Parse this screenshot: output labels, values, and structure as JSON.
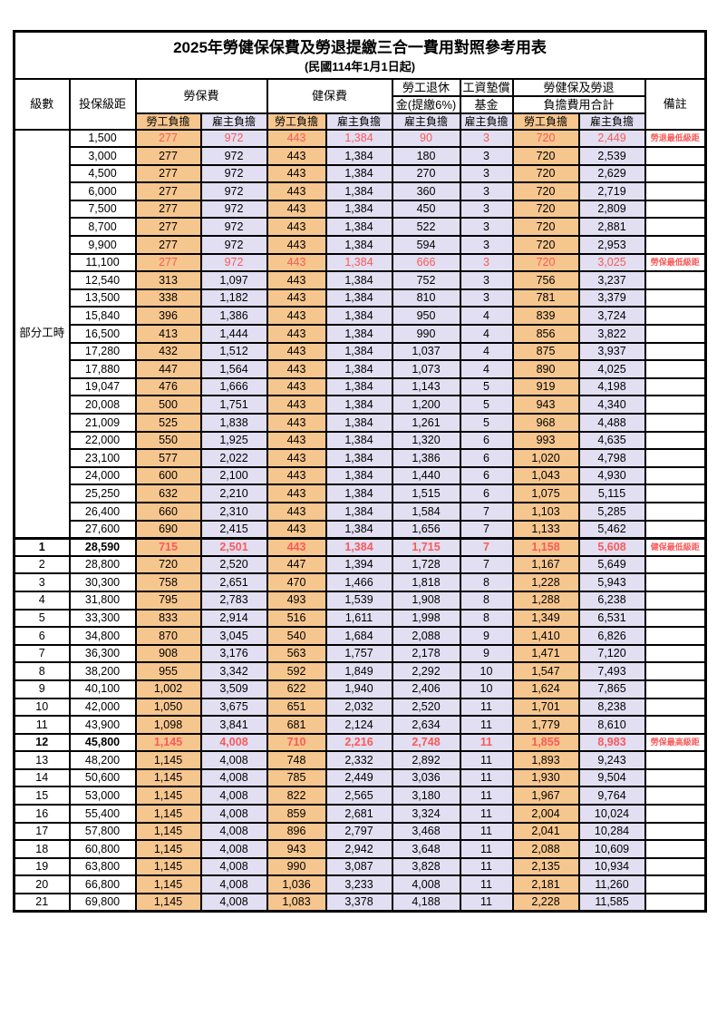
{
  "title": "2025年勞健保保費及勞退提繳三合一費用對照參考用表",
  "subtitle": "(民國114年1月1日起)",
  "colors": {
    "employee_column_bg": "#F6C68F",
    "employer_column_bg": "#E1DFF1",
    "highlight_text": "#FA5A5A",
    "border": "#000000"
  },
  "header": {
    "level": "級數",
    "salary_bracket": "投保級距",
    "labor_insurance": "勞保費",
    "health_insurance": "健保費",
    "pension_line1": "勞工退休",
    "pension_line2": "金(提繳6%)",
    "wage_fund_line1": "工資墊償",
    "wage_fund_line2": "基金",
    "total_line1": "勞健保及勞退",
    "total_line2": "負擔費用合計",
    "note": "備註",
    "employee_burden": "勞工負擔",
    "employer_burden": "雇主負擔"
  },
  "part_time_label": "部分工時",
  "rows": [
    {
      "level": "",
      "salary": "1,500",
      "values": [
        "277",
        "972",
        "443",
        "1,384",
        "90",
        "3",
        "720",
        "2,449"
      ],
      "note": "勞退最低級距",
      "style": "red"
    },
    {
      "level": "",
      "salary": "3,000",
      "values": [
        "277",
        "972",
        "443",
        "1,384",
        "180",
        "3",
        "720",
        "2,539"
      ],
      "note": "",
      "style": ""
    },
    {
      "level": "",
      "salary": "4,500",
      "values": [
        "277",
        "972",
        "443",
        "1,384",
        "270",
        "3",
        "720",
        "2,629"
      ],
      "note": "",
      "style": ""
    },
    {
      "level": "",
      "salary": "6,000",
      "values": [
        "277",
        "972",
        "443",
        "1,384",
        "360",
        "3",
        "720",
        "2,719"
      ],
      "note": "",
      "style": ""
    },
    {
      "level": "",
      "salary": "7,500",
      "values": [
        "277",
        "972",
        "443",
        "1,384",
        "450",
        "3",
        "720",
        "2,809"
      ],
      "note": "",
      "style": ""
    },
    {
      "level": "",
      "salary": "8,700",
      "values": [
        "277",
        "972",
        "443",
        "1,384",
        "522",
        "3",
        "720",
        "2,881"
      ],
      "note": "",
      "style": ""
    },
    {
      "level": "",
      "salary": "9,900",
      "values": [
        "277",
        "972",
        "443",
        "1,384",
        "594",
        "3",
        "720",
        "2,953"
      ],
      "note": "",
      "style": ""
    },
    {
      "level": "",
      "salary": "11,100",
      "values": [
        "277",
        "972",
        "443",
        "1,384",
        "666",
        "3",
        "720",
        "3,025"
      ],
      "note": "勞保最低級距",
      "style": "red"
    },
    {
      "level": "",
      "salary": "12,540",
      "values": [
        "313",
        "1,097",
        "443",
        "1,384",
        "752",
        "3",
        "756",
        "3,237"
      ],
      "note": "",
      "style": ""
    },
    {
      "level": "",
      "salary": "13,500",
      "values": [
        "338",
        "1,182",
        "443",
        "1,384",
        "810",
        "3",
        "781",
        "3,379"
      ],
      "note": "",
      "style": ""
    },
    {
      "level": "",
      "salary": "15,840",
      "values": [
        "396",
        "1,386",
        "443",
        "1,384",
        "950",
        "4",
        "839",
        "3,724"
      ],
      "note": "",
      "style": ""
    },
    {
      "level": "",
      "salary": "16,500",
      "values": [
        "413",
        "1,444",
        "443",
        "1,384",
        "990",
        "4",
        "856",
        "3,822"
      ],
      "note": "",
      "style": ""
    },
    {
      "level": "",
      "salary": "17,280",
      "values": [
        "432",
        "1,512",
        "443",
        "1,384",
        "1,037",
        "4",
        "875",
        "3,937"
      ],
      "note": "",
      "style": ""
    },
    {
      "level": "",
      "salary": "17,880",
      "values": [
        "447",
        "1,564",
        "443",
        "1,384",
        "1,073",
        "4",
        "890",
        "4,025"
      ],
      "note": "",
      "style": ""
    },
    {
      "level": "",
      "salary": "19,047",
      "values": [
        "476",
        "1,666",
        "443",
        "1,384",
        "1,143",
        "5",
        "919",
        "4,198"
      ],
      "note": "",
      "style": ""
    },
    {
      "level": "",
      "salary": "20,008",
      "values": [
        "500",
        "1,751",
        "443",
        "1,384",
        "1,200",
        "5",
        "943",
        "4,340"
      ],
      "note": "",
      "style": ""
    },
    {
      "level": "",
      "salary": "21,009",
      "values": [
        "525",
        "1,838",
        "443",
        "1,384",
        "1,261",
        "5",
        "968",
        "4,488"
      ],
      "note": "",
      "style": ""
    },
    {
      "level": "",
      "salary": "22,000",
      "values": [
        "550",
        "1,925",
        "443",
        "1,384",
        "1,320",
        "6",
        "993",
        "4,635"
      ],
      "note": "",
      "style": ""
    },
    {
      "level": "",
      "salary": "23,100",
      "values": [
        "577",
        "2,022",
        "443",
        "1,384",
        "1,386",
        "6",
        "1,020",
        "4,798"
      ],
      "note": "",
      "style": ""
    },
    {
      "level": "",
      "salary": "24,000",
      "values": [
        "600",
        "2,100",
        "443",
        "1,384",
        "1,440",
        "6",
        "1,043",
        "4,930"
      ],
      "note": "",
      "style": ""
    },
    {
      "level": "",
      "salary": "25,250",
      "values": [
        "632",
        "2,210",
        "443",
        "1,384",
        "1,515",
        "6",
        "1,075",
        "5,115"
      ],
      "note": "",
      "style": ""
    },
    {
      "level": "",
      "salary": "26,400",
      "values": [
        "660",
        "2,310",
        "443",
        "1,384",
        "1,584",
        "7",
        "1,103",
        "5,285"
      ],
      "note": "",
      "style": ""
    },
    {
      "level": "",
      "salary": "27,600",
      "values": [
        "690",
        "2,415",
        "443",
        "1,384",
        "1,656",
        "7",
        "1,133",
        "5,462"
      ],
      "note": "",
      "style": ""
    },
    {
      "level": "1",
      "salary": "28,590",
      "values": [
        "715",
        "2,501",
        "443",
        "1,384",
        "1,715",
        "7",
        "1,158",
        "5,608"
      ],
      "note": "健保最低級距",
      "style": "red-bold"
    },
    {
      "level": "2",
      "salary": "28,800",
      "values": [
        "720",
        "2,520",
        "447",
        "1,394",
        "1,728",
        "7",
        "1,167",
        "5,649"
      ],
      "note": "",
      "style": ""
    },
    {
      "level": "3",
      "salary": "30,300",
      "values": [
        "758",
        "2,651",
        "470",
        "1,466",
        "1,818",
        "8",
        "1,228",
        "5,943"
      ],
      "note": "",
      "style": ""
    },
    {
      "level": "4",
      "salary": "31,800",
      "values": [
        "795",
        "2,783",
        "493",
        "1,539",
        "1,908",
        "8",
        "1,288",
        "6,238"
      ],
      "note": "",
      "style": ""
    },
    {
      "level": "5",
      "salary": "33,300",
      "values": [
        "833",
        "2,914",
        "516",
        "1,611",
        "1,998",
        "8",
        "1,349",
        "6,531"
      ],
      "note": "",
      "style": ""
    },
    {
      "level": "6",
      "salary": "34,800",
      "values": [
        "870",
        "3,045",
        "540",
        "1,684",
        "2,088",
        "9",
        "1,410",
        "6,826"
      ],
      "note": "",
      "style": ""
    },
    {
      "level": "7",
      "salary": "36,300",
      "values": [
        "908",
        "3,176",
        "563",
        "1,757",
        "2,178",
        "9",
        "1,471",
        "7,120"
      ],
      "note": "",
      "style": ""
    },
    {
      "level": "8",
      "salary": "38,200",
      "values": [
        "955",
        "3,342",
        "592",
        "1,849",
        "2,292",
        "10",
        "1,547",
        "7,493"
      ],
      "note": "",
      "style": ""
    },
    {
      "level": "9",
      "salary": "40,100",
      "values": [
        "1,002",
        "3,509",
        "622",
        "1,940",
        "2,406",
        "10",
        "1,624",
        "7,865"
      ],
      "note": "",
      "style": ""
    },
    {
      "level": "10",
      "salary": "42,000",
      "values": [
        "1,050",
        "3,675",
        "651",
        "2,032",
        "2,520",
        "11",
        "1,701",
        "8,238"
      ],
      "note": "",
      "style": ""
    },
    {
      "level": "11",
      "salary": "43,900",
      "values": [
        "1,098",
        "3,841",
        "681",
        "2,124",
        "2,634",
        "11",
        "1,779",
        "8,610"
      ],
      "note": "",
      "style": ""
    },
    {
      "level": "12",
      "salary": "45,800",
      "values": [
        "1,145",
        "4,008",
        "710",
        "2,216",
        "2,748",
        "11",
        "1,855",
        "8,983"
      ],
      "note": "勞保最高級距",
      "style": "red-bold"
    },
    {
      "level": "13",
      "salary": "48,200",
      "values": [
        "1,145",
        "4,008",
        "748",
        "2,332",
        "2,892",
        "11",
        "1,893",
        "9,243"
      ],
      "note": "",
      "style": ""
    },
    {
      "level": "14",
      "salary": "50,600",
      "values": [
        "1,145",
        "4,008",
        "785",
        "2,449",
        "3,036",
        "11",
        "1,930",
        "9,504"
      ],
      "note": "",
      "style": ""
    },
    {
      "level": "15",
      "salary": "53,000",
      "values": [
        "1,145",
        "4,008",
        "822",
        "2,565",
        "3,180",
        "11",
        "1,967",
        "9,764"
      ],
      "note": "",
      "style": ""
    },
    {
      "level": "16",
      "salary": "55,400",
      "values": [
        "1,145",
        "4,008",
        "859",
        "2,681",
        "3,324",
        "11",
        "2,004",
        "10,024"
      ],
      "note": "",
      "style": ""
    },
    {
      "level": "17",
      "salary": "57,800",
      "values": [
        "1,145",
        "4,008",
        "896",
        "2,797",
        "3,468",
        "11",
        "2,041",
        "10,284"
      ],
      "note": "",
      "style": ""
    },
    {
      "level": "18",
      "salary": "60,800",
      "values": [
        "1,145",
        "4,008",
        "943",
        "2,942",
        "3,648",
        "11",
        "2,088",
        "10,609"
      ],
      "note": "",
      "style": ""
    },
    {
      "level": "19",
      "salary": "63,800",
      "values": [
        "1,145",
        "4,008",
        "990",
        "3,087",
        "3,828",
        "11",
        "2,135",
        "10,934"
      ],
      "note": "",
      "style": ""
    },
    {
      "level": "20",
      "salary": "66,800",
      "values": [
        "1,145",
        "4,008",
        "1,036",
        "3,233",
        "4,008",
        "11",
        "2,181",
        "11,260"
      ],
      "note": "",
      "style": ""
    },
    {
      "level": "21",
      "salary": "69,800",
      "values": [
        "1,145",
        "4,008",
        "1,083",
        "3,378",
        "4,188",
        "11",
        "2,228",
        "11,585"
      ],
      "note": "",
      "style": ""
    }
  ]
}
